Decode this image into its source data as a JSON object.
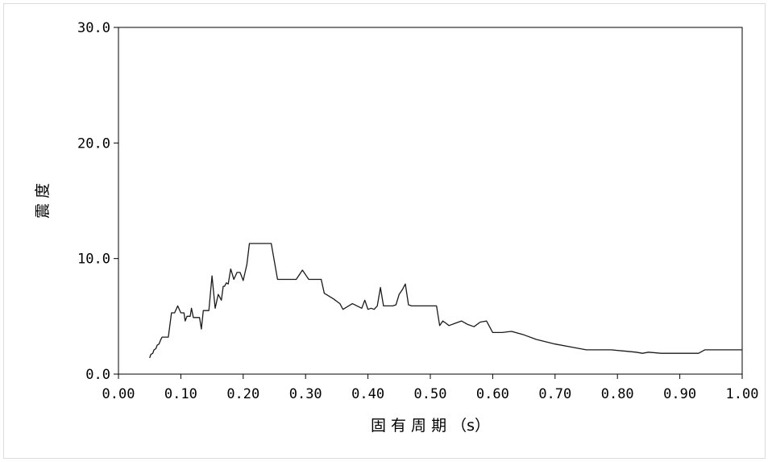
{
  "chart_data": {
    "type": "line",
    "title": "",
    "xlabel": "固 有 周 期 （s）",
    "ylabel": "震 度",
    "xlim": [
      0.0,
      1.0
    ],
    "ylim": [
      0.0,
      30.0
    ],
    "xticks": [
      "0.00",
      "0.10",
      "0.20",
      "0.30",
      "0.40",
      "0.50",
      "0.60",
      "0.70",
      "0.80",
      "0.90",
      "1.00"
    ],
    "yticks": [
      "0.0",
      "10.0",
      "20.0",
      "30.0"
    ],
    "grid": false,
    "legend": "none",
    "line_color": "#1a1a1a",
    "series": [
      {
        "x": [
          0.05,
          0.052,
          0.055,
          0.057,
          0.06,
          0.062,
          0.065,
          0.068,
          0.07,
          0.075,
          0.08,
          0.085,
          0.09,
          0.095,
          0.1,
          0.105,
          0.107,
          0.11,
          0.115,
          0.117,
          0.12,
          0.125,
          0.13,
          0.133,
          0.136,
          0.14,
          0.145,
          0.15,
          0.155,
          0.16,
          0.165,
          0.168,
          0.17,
          0.173,
          0.176,
          0.18,
          0.185,
          0.19,
          0.195,
          0.2,
          0.203,
          0.206,
          0.21,
          0.215,
          0.22,
          0.225,
          0.235,
          0.245,
          0.255,
          0.265,
          0.275,
          0.285,
          0.295,
          0.305,
          0.315,
          0.32,
          0.325,
          0.33,
          0.345,
          0.355,
          0.36,
          0.375,
          0.39,
          0.395,
          0.4,
          0.405,
          0.41,
          0.415,
          0.42,
          0.425,
          0.43,
          0.435,
          0.44,
          0.445,
          0.45,
          0.455,
          0.46,
          0.465,
          0.47,
          0.475,
          0.485,
          0.495,
          0.505,
          0.51,
          0.515,
          0.52,
          0.525,
          0.53,
          0.54,
          0.55,
          0.56,
          0.57,
          0.58,
          0.59,
          0.6,
          0.615,
          0.63,
          0.65,
          0.67,
          0.7,
          0.73,
          0.75,
          0.77,
          0.79,
          0.81,
          0.83,
          0.84,
          0.85,
          0.87,
          0.89,
          0.91,
          0.93,
          0.94,
          0.96,
          0.98,
          1.0
        ],
        "y": [
          1.4,
          1.7,
          1.8,
          2.1,
          2.2,
          2.5,
          2.6,
          3.0,
          3.2,
          3.2,
          3.2,
          5.3,
          5.3,
          5.9,
          5.3,
          5.3,
          4.6,
          5.0,
          5.0,
          5.7,
          4.9,
          4.9,
          4.9,
          3.9,
          5.5,
          5.5,
          5.5,
          8.5,
          5.7,
          6.9,
          6.4,
          7.6,
          7.6,
          7.9,
          7.8,
          9.1,
          8.2,
          8.8,
          8.8,
          8.1,
          8.8,
          9.5,
          11.3,
          11.3,
          11.3,
          11.3,
          11.3,
          11.3,
          8.2,
          8.2,
          8.2,
          8.2,
          9.0,
          8.2,
          8.2,
          8.2,
          8.2,
          7.0,
          6.5,
          6.1,
          5.6,
          6.1,
          5.7,
          6.4,
          5.6,
          5.7,
          5.6,
          5.9,
          7.5,
          5.9,
          5.9,
          5.9,
          5.9,
          6.0,
          6.9,
          7.3,
          7.8,
          6.0,
          5.9,
          5.9,
          5.9,
          5.9,
          5.9,
          5.9,
          4.2,
          4.6,
          4.4,
          4.2,
          4.4,
          4.6,
          4.3,
          4.1,
          4.5,
          4.6,
          3.6,
          3.6,
          3.7,
          3.4,
          3.0,
          2.6,
          2.3,
          2.1,
          2.1,
          2.1,
          2.0,
          1.9,
          1.8,
          1.9,
          1.8,
          1.8,
          1.8,
          1.8,
          2.1,
          2.1,
          2.1,
          2.1
        ]
      }
    ]
  }
}
